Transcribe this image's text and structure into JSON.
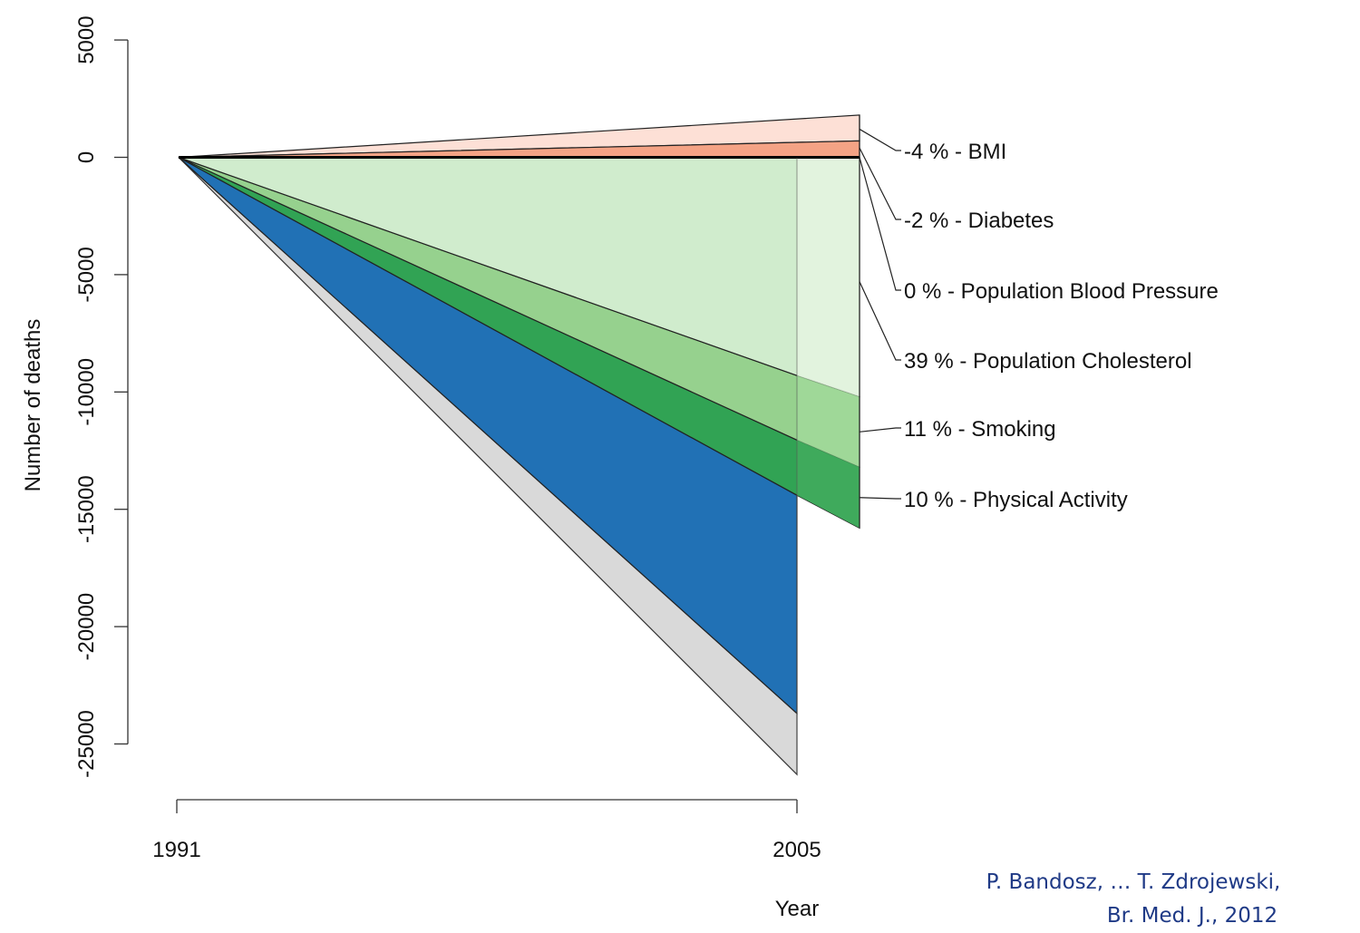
{
  "chart_data": {
    "type": "area",
    "title": "",
    "xlabel": "Year",
    "ylabel": "Number of deaths",
    "x": [
      1991,
      2005
    ],
    "x_ticks": [
      "1991",
      "2005"
    ],
    "ylim": [
      -25000,
      5000
    ],
    "y_ticks": [
      "5000",
      "0",
      "-5000",
      "-10000",
      "-15000",
      "-20000",
      "-25000"
    ],
    "grid": false,
    "observed_decline": {
      "total_at_2005": -26300,
      "explained_at_2005": -23700
    },
    "factors": [
      {
        "label": "-4 % -  BMI",
        "value_at_2005": 1800,
        "color": "#fde0d6"
      },
      {
        "label": "-2 % -  Diabetes",
        "value_at_2005": 700,
        "color": "#f4a385"
      },
      {
        "label": "0 % -  Population Blood Pressure",
        "value_at_2005": 0,
        "color": "#cb181d"
      },
      {
        "label": "39 % -  Population Cholesterol",
        "value_at_2005": -10200,
        "color": "#e5f5e0"
      },
      {
        "label": "11 % -  Smoking",
        "value_at_2005": -13200,
        "color": "#a1d99b"
      },
      {
        "label": "10 % -  Physical Activity",
        "value_at_2005": -15800,
        "color": "#41ab5d"
      }
    ],
    "colors": {
      "unexplained": "#d9d9d9",
      "treatments": "#2171b5",
      "cholesterol_in_stack": "#d0eccd",
      "smoking_in_stack": "#96d18e",
      "activity_in_stack": "#31a354"
    }
  },
  "citation": {
    "line1": "P. Bandosz, … T. Zdrojewski,",
    "line2": "Br. Med. J., 2012"
  }
}
